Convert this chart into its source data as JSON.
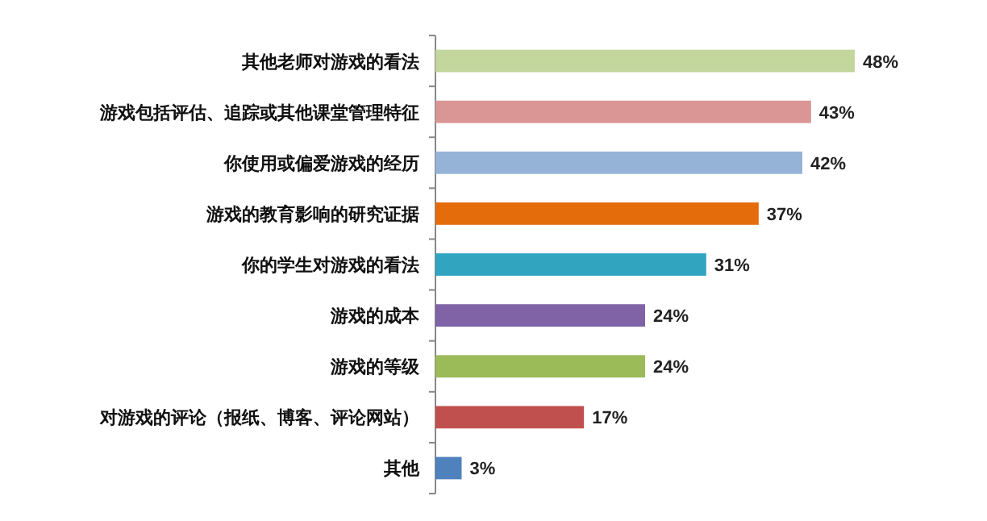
{
  "chart_data": {
    "type": "bar",
    "orientation": "horizontal",
    "categories": [
      "其他老师对游戏的看法",
      "游戏包括评估、追踪或其他课堂管理特征",
      "你使用或偏爱游戏的经历",
      "游戏的教育影响的研究证据",
      "你的学生对游戏的看法",
      "游戏的成本",
      "游戏的等级",
      "对游戏的评论（报纸、博客、评论网站）",
      "其他"
    ],
    "values": [
      48,
      43,
      42,
      37,
      31,
      24,
      24,
      17,
      3
    ],
    "value_labels": [
      "48%",
      "43%",
      "42%",
      "37%",
      "31%",
      "24%",
      "24%",
      "17%",
      "3%"
    ],
    "colors": [
      "#c3d69b",
      "#d99694",
      "#95b3d7",
      "#e46c0a",
      "#31a5c0",
      "#7f63a6",
      "#9bbb59",
      "#c0504d",
      "#4f81bd"
    ]
  }
}
